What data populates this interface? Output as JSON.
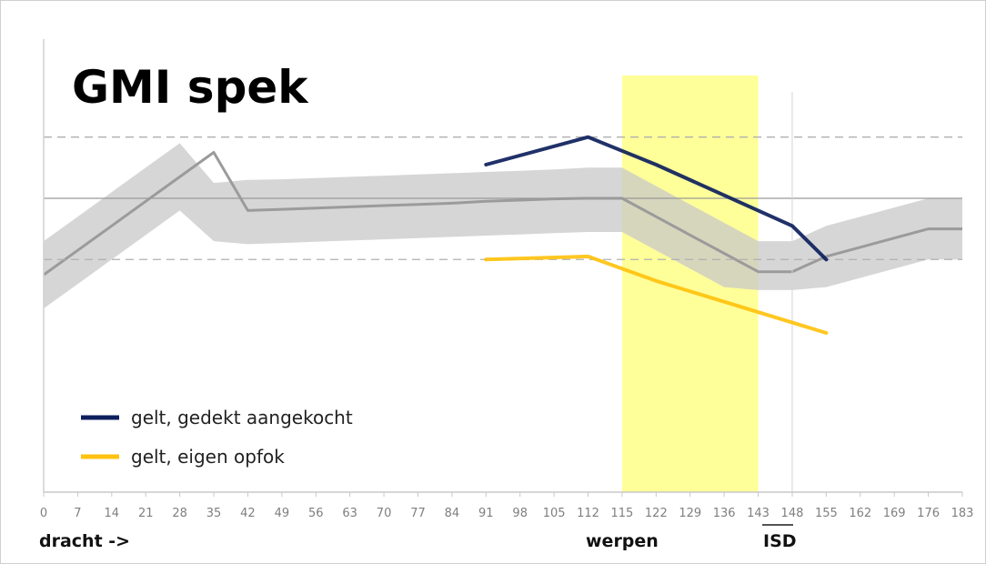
{
  "chart_data": {
    "type": "line",
    "title": "GMI spek",
    "categories": [
      "0",
      "7",
      "14",
      "21",
      "28",
      "35",
      "42",
      "49",
      "56",
      "63",
      "70",
      "77",
      "84",
      "91",
      "98",
      "105",
      "112",
      "115",
      "122",
      "129",
      "136",
      "143",
      "148",
      "155",
      "162",
      "169",
      "176",
      "183"
    ],
    "reference": {
      "mean": [
        -1.25,
        -0.85,
        -0.45,
        -0.05,
        0.35,
        0.75,
        -0.2,
        -0.18,
        -0.16,
        -0.14,
        -0.12,
        -0.1,
        -0.08,
        -0.05,
        -0.03,
        -0.01,
        0.0,
        0.0,
        -0.3,
        -0.6,
        -0.9,
        -1.2,
        -1.2,
        -0.95,
        -0.8,
        -0.65,
        -0.5,
        -0.5
      ],
      "band_upper": [
        -0.7,
        -0.3,
        0.1,
        0.5,
        0.9,
        0.25,
        0.3,
        0.31,
        0.33,
        0.35,
        0.37,
        0.39,
        0.41,
        0.43,
        0.45,
        0.47,
        0.5,
        0.5,
        0.2,
        -0.1,
        -0.4,
        -0.7,
        -0.7,
        -0.45,
        -0.3,
        -0.15,
        0.0,
        0.0
      ],
      "band_lower": [
        -1.8,
        -1.4,
        -1.0,
        -0.6,
        -0.2,
        -0.7,
        -0.75,
        -0.73,
        -0.71,
        -0.69,
        -0.67,
        -0.65,
        -0.63,
        -0.61,
        -0.59,
        -0.57,
        -0.55,
        -0.55,
        -0.85,
        -1.15,
        -1.45,
        -1.5,
        -1.5,
        -1.45,
        -1.3,
        -1.15,
        -1.0,
        -1.0
      ]
    },
    "series": [
      {
        "name": "gelt, gedekt aangekocht",
        "color": "#0d1f5c",
        "x": [
          "91",
          "112",
          "122",
          "148",
          "155"
        ],
        "values": [
          0.55,
          1.0,
          0.55,
          -0.45,
          -1.0
        ]
      },
      {
        "name": "gelt, eigen opfok",
        "color": "#ffc20e",
        "x": [
          "91",
          "112",
          "122",
          "155"
        ],
        "values": [
          -1.0,
          -0.95,
          -1.35,
          -2.2
        ]
      }
    ],
    "highlight": {
      "from": "115",
      "to": "143",
      "color": "#ffff88"
    },
    "reference_lines": {
      "solid": 0,
      "dashed": [
        1.0,
        -1.0
      ]
    },
    "vline_at": "148",
    "annotations": {
      "xlabel_left": "dracht ->",
      "werpen": "werpen",
      "isd": "ISD"
    },
    "ylim": [
      -4.8,
      2.6
    ],
    "legend_position": "lower-left",
    "grid": false
  }
}
